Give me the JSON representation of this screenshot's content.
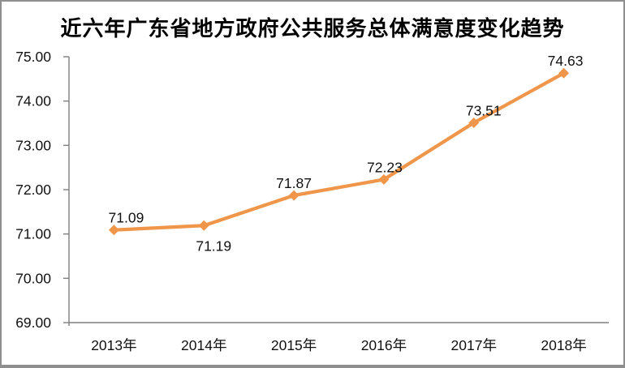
{
  "frame": {
    "background": "#ffffff",
    "border_color": "#8f8f8f"
  },
  "chart_data": {
    "type": "line",
    "title": "近六年广东省地方政府公共服务总体满意度变化趋势",
    "categories": [
      "2013年",
      "2014年",
      "2015年",
      "2016年",
      "2017年",
      "2018年"
    ],
    "series": [
      {
        "values": [
          71.09,
          71.19,
          71.87,
          72.23,
          73.51,
          74.63
        ],
        "color": "#F0964B",
        "marker": "diamond"
      }
    ],
    "data_labels": [
      "71.09",
      "71.19",
      "71.87",
      "72.23",
      "73.51",
      "74.63"
    ],
    "data_label_side": [
      "above",
      "below",
      "above",
      "above",
      "above",
      "above"
    ],
    "data_label_dx": [
      15,
      12,
      0,
      1,
      12,
      2
    ],
    "xlabel": "",
    "ylabel": "",
    "ylim": [
      69,
      75
    ],
    "y_ticks": [
      "75.00",
      "74.00",
      "73.00",
      "72.00",
      "71.00",
      "70.00",
      "69.00"
    ],
    "grid": false,
    "legend": "none",
    "axis_color": "#7f7f7f",
    "text_color": "#111111"
  }
}
